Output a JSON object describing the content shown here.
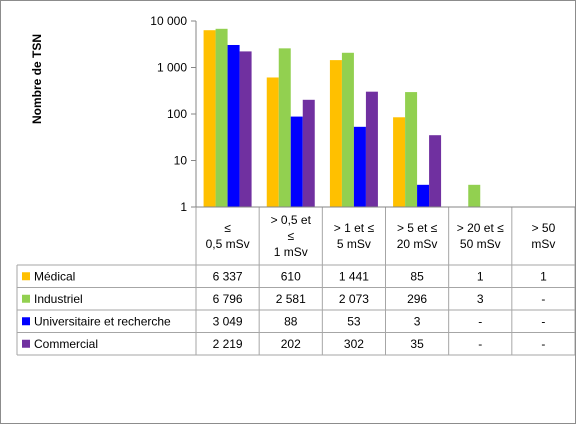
{
  "chart_data": {
    "type": "bar",
    "ylabel": "Nombre de TSN",
    "xlabel": "",
    "yscale": "log",
    "ylim": [
      1,
      10000
    ],
    "yticks": [
      {
        "value": 1,
        "label": "1"
      },
      {
        "value": 10,
        "label": "10"
      },
      {
        "value": 100,
        "label": "100"
      },
      {
        "value": 1000,
        "label": "1 000"
      },
      {
        "value": 10000,
        "label": "10 000"
      }
    ],
    "categories": [
      [
        "≤",
        "0,5 mSv"
      ],
      [
        "> 0,5 et",
        "≤",
        "1 mSv"
      ],
      [
        "> 1 et ≤",
        "5 mSv"
      ],
      [
        "> 5 et ≤",
        "20 mSv"
      ],
      [
        "> 20 et ≤",
        "50 mSv"
      ],
      [
        "> 50",
        "mSv"
      ]
    ],
    "legend_position": "table",
    "series": [
      {
        "name": "Médical",
        "color": "#FFC000",
        "values": [
          6337,
          610,
          1441,
          85,
          1,
          1
        ],
        "labels": [
          "6 337",
          "610",
          "1 441",
          "85",
          "1",
          "1"
        ]
      },
      {
        "name": "Industriel",
        "color": "#92D050",
        "values": [
          6796,
          2581,
          2073,
          296,
          3,
          null
        ],
        "labels": [
          "6 796",
          "2 581",
          "2 073",
          "296",
          "3",
          "-"
        ]
      },
      {
        "name": "Universitaire et recherche",
        "color": "#0000FF",
        "values": [
          3049,
          88,
          53,
          3,
          null,
          null
        ],
        "labels": [
          "3 049",
          "88",
          "53",
          "3",
          "-",
          "-"
        ]
      },
      {
        "name": "Commercial",
        "color": "#7030A0",
        "values": [
          2219,
          202,
          302,
          35,
          null,
          null
        ],
        "labels": [
          "2 219",
          "202",
          "302",
          "35",
          "-",
          "-"
        ]
      }
    ],
    "grid": false
  }
}
